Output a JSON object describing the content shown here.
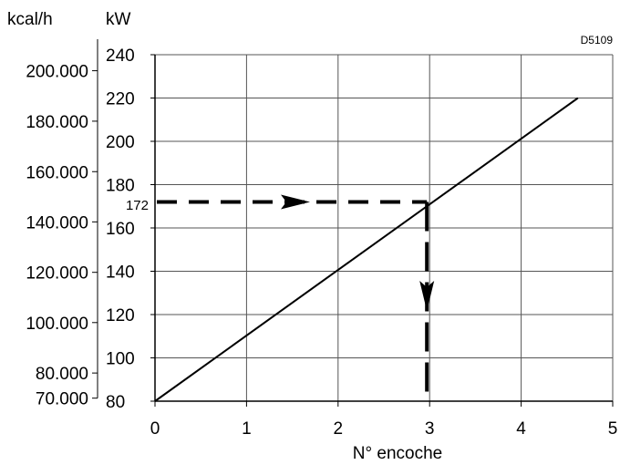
{
  "chart_data": {
    "type": "line",
    "title": "",
    "code": "D5109",
    "xlabel": "N° encoche",
    "ylabel_left": "kcal/h",
    "ylabel_right": "kW",
    "xlim": [
      0,
      5
    ],
    "ylim": [
      80,
      240
    ],
    "x_ticks": [
      0,
      1,
      2,
      3,
      4,
      5
    ],
    "x_tick_labels": [
      "0",
      "1",
      "2",
      "3",
      "4",
      "5"
    ],
    "y_ticks": [
      80,
      100,
      120,
      140,
      160,
      180,
      200,
      220,
      240
    ],
    "y_tick_labels": [
      "80",
      "100",
      "120",
      "140",
      "160",
      "180",
      "200",
      "220",
      "240"
    ],
    "kcal_ticks": [
      {
        "kw": 81.4,
        "label": "70.000"
      },
      {
        "kw": 93.0,
        "label": "80.000"
      },
      {
        "kw": 116.3,
        "label": "100.000"
      },
      {
        "kw": 139.5,
        "label": "120.000"
      },
      {
        "kw": 162.8,
        "label": "140.000"
      },
      {
        "kw": 186.0,
        "label": "160.000"
      },
      {
        "kw": 209.3,
        "label": "180.000"
      },
      {
        "kw": 232.6,
        "label": "200.000"
      }
    ],
    "grid": true,
    "series": [
      {
        "values": [
          {
            "x": 0,
            "y": 80
          },
          {
            "x": 4.62,
            "y": 220
          }
        ],
        "color": "#000000"
      }
    ],
    "annotation": {
      "value_label": "172",
      "y": 172,
      "x": 2.97
    }
  }
}
